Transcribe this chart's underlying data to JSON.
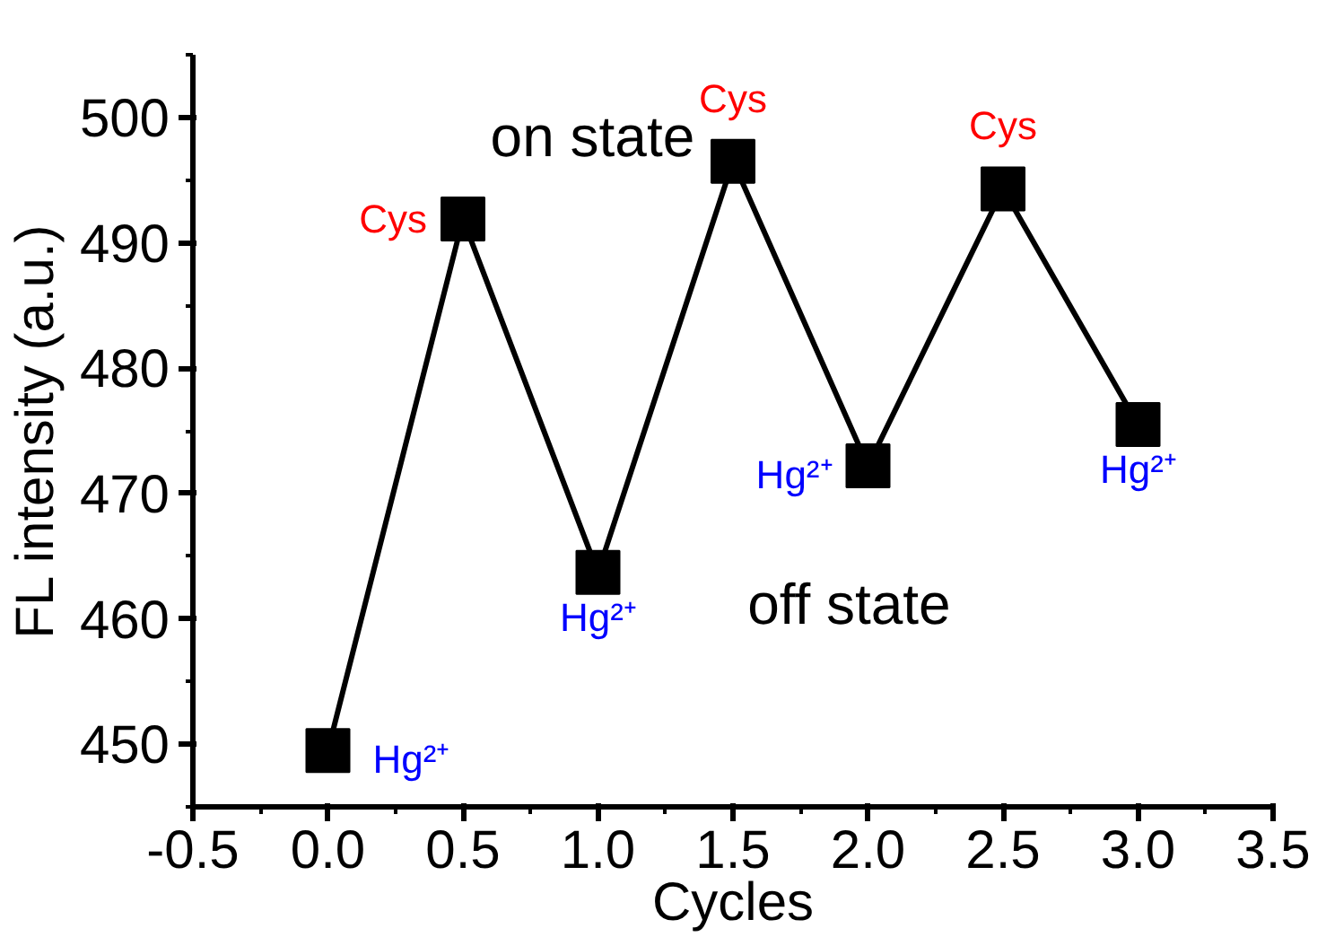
{
  "chart_data": {
    "type": "line",
    "xlabel": "Cycles",
    "ylabel": "FL intensity (a.u.)",
    "x": [
      0.0,
      0.5,
      1.0,
      1.5,
      2.0,
      2.5,
      3.0
    ],
    "series": [
      {
        "color": "#000000",
        "values": [
          449.5,
          491.9,
          463.7,
          496.5,
          472.2,
          494.3,
          475.5
        ]
      }
    ],
    "marker": "square",
    "line_style": "solid",
    "xlim": [
      -0.5,
      3.5
    ],
    "ylim": [
      445,
      505
    ],
    "xticks": [
      {
        "value": -0.5,
        "label": "-0.5"
      },
      {
        "value": 0.0,
        "label": "0.0"
      },
      {
        "value": 0.5,
        "label": "0.5"
      },
      {
        "value": 1.0,
        "label": "1.0"
      },
      {
        "value": 1.5,
        "label": "1.5"
      },
      {
        "value": 2.0,
        "label": "2.0"
      },
      {
        "value": 2.5,
        "label": "2.5"
      },
      {
        "value": 3.0,
        "label": "3.0"
      },
      {
        "value": 3.5,
        "label": "3.5"
      }
    ],
    "yticks": [
      450,
      460,
      470,
      480,
      490,
      500
    ],
    "annotations": [
      "on state",
      "off state",
      {
        "text": "Hg²⁺",
        "x": 0.0,
        "y": 449.5
      },
      {
        "text": "Cys",
        "x": 0.5,
        "y": 491.9
      },
      {
        "text": "Hg²⁺",
        "x": 1.0,
        "y": 463.7
      },
      {
        "text": "Cys",
        "x": 1.5,
        "y": 496.5
      },
      {
        "text": "Hg²⁺",
        "x": 2.0,
        "y": 472.2
      },
      {
        "text": "Cys",
        "x": 2.5,
        "y": 494.3
      },
      {
        "text": "Hg²⁺",
        "x": 3.0,
        "y": 475.5
      }
    ]
  }
}
